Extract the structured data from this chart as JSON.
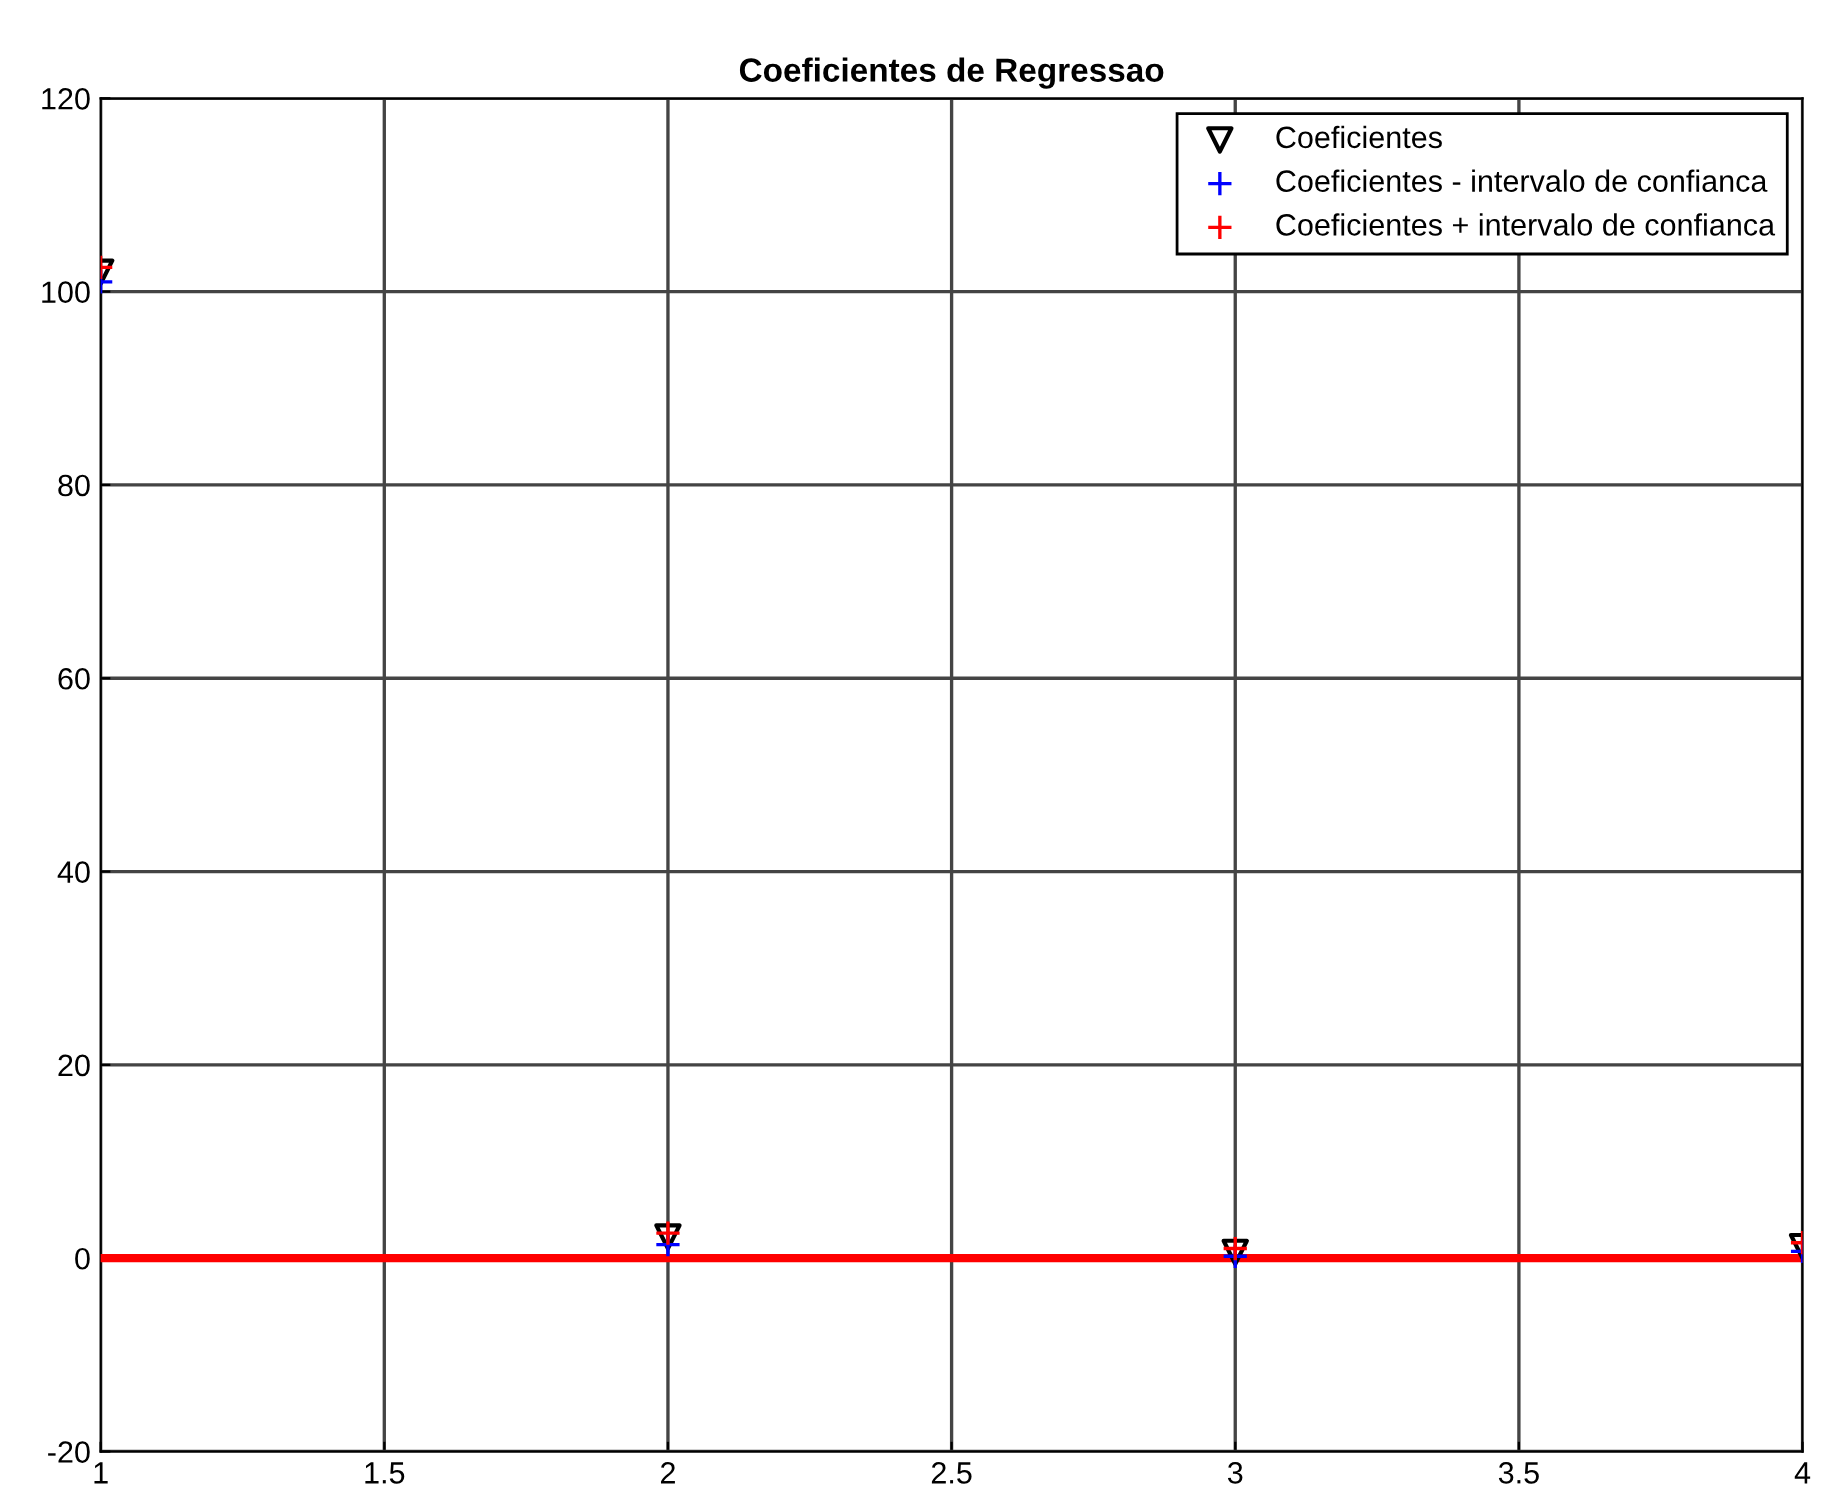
{
  "chart_data": {
    "type": "scatter",
    "title": "Coeficientes de Regressao",
    "x": [
      1,
      2,
      3,
      4
    ],
    "series": [
      {
        "name": "Coeficientes",
        "color": "#000000",
        "marker": "triangle",
        "values": [
          102,
          2.2,
          0.6,
          1.2
        ]
      },
      {
        "name": "Coeficientes - intervalo de confianca",
        "color": "#0000ff",
        "marker": "cross",
        "values": [
          101,
          1.4,
          0.2,
          0.7
        ]
      },
      {
        "name": "Coeficientes + intervalo de confianca",
        "color": "#ff0000",
        "marker": "cross",
        "values": [
          102.5,
          2.6,
          1,
          1.6
        ]
      }
    ],
    "ref_lines": [
      {
        "axis": "y",
        "value": 0,
        "color": "#ff0000"
      }
    ],
    "xlim": [
      1,
      4
    ],
    "xticks": [
      1,
      1.5,
      2,
      2.5,
      3,
      3.5,
      4
    ],
    "ylim": [
      -20,
      120
    ],
    "yticks": [
      -20,
      0,
      20,
      40,
      60,
      80,
      100,
      120
    ],
    "grid": true,
    "legend": "top right"
  }
}
